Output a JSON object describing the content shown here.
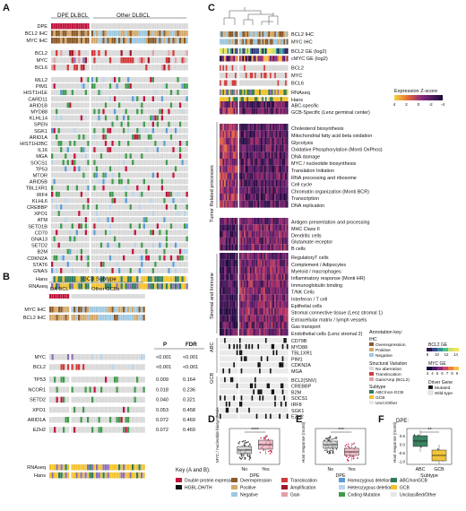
{
  "colors": {
    "dpe": "#c0143c",
    "overexpression": "#8b5a2b",
    "positive": "#d4a86a",
    "negative": "#9ec8e0",
    "translocation": "#d13a3a",
    "amplification": "#a0192a",
    "gain": "#e0a2a8",
    "homo_del": "#5b9bd5",
    "hetero_del": "#b8d4ea",
    "coding": "#3f9a4a",
    "abc": "#2f7d5a",
    "gcb": "#f2c230",
    "uncl": "#e6e6e6",
    "grey": "#d9d9d9",
    "heat_hi": "#f5d53b",
    "heat_mid": "#8a2b80",
    "heat_lo": "#1a0b3a"
  },
  "panel_a": {
    "letter": "A",
    "header_left": "DPE DLBCL",
    "header_right": "Other DLBCL",
    "top_rows": [
      "DPE",
      "BCL2 IHC",
      "MYC IHC"
    ],
    "gene_rows_1": [
      "BCL2",
      "MYC",
      "BCL6"
    ],
    "mutation_rows": [
      "MLL2",
      "PIM1",
      "HIST1H1E",
      "CARD11",
      "ARID1B",
      "MYD88",
      "KLHL14",
      "SPEN",
      "SGK1",
      "ARID1A",
      "HIST1H2BC",
      "IL16",
      "MGA",
      "SOCS1",
      "TP53",
      "MTOR",
      "ARID5B",
      "TBL1XR1",
      "IRF4",
      "KLHL6",
      "CREBBP",
      "XPO1",
      "ATM",
      "SETD1B",
      "CD70",
      "GNA13",
      "SETD2",
      "B2M",
      "CDKN2A",
      "STAT6",
      "GNAS"
    ],
    "bottom_rows": [
      "Hans",
      "RNAseq"
    ]
  },
  "panel_b": {
    "letter": "B",
    "subtype_title": "GCB Subtype",
    "group_left": "DA BCL",
    "group_right": "Other GCBs",
    "ihc_rows": [
      "MYC IHC",
      "BCL2 IHC"
    ],
    "col_p": "P",
    "col_fdr": "FDR",
    "rows": [
      {
        "label": "MYC",
        "p": "<0.001",
        "fdr": "<0.001"
      },
      {
        "label": "BCL2",
        "p": "<0.001",
        "fdr": "<0.001"
      },
      {
        "label": "TP53",
        "p": "0.009",
        "fdr": "0.164"
      },
      {
        "label": "NCOR1",
        "p": "0.018",
        "fdr": "0.236"
      },
      {
        "label": "SETD2",
        "p": "0.040",
        "fdr": "0.321"
      },
      {
        "label": "XPO1",
        "p": "0.053",
        "fdr": "0.458"
      },
      {
        "label": "ARID1A",
        "p": "0.072",
        "fdr": "0.469"
      },
      {
        "label": "EZH2",
        "p": "0.072",
        "fdr": "0.469"
      }
    ],
    "bottom_rows": [
      "RNAseq",
      "Hans"
    ]
  },
  "panel_c": {
    "letter": "C",
    "annot_rows": [
      "BCL2 IHC",
      "MYC IHC",
      "BCL2 GE (log2)",
      "cMYC GE (log2)",
      "BCL2",
      "MYC",
      "BCL6",
      "RNAseq",
      "Hans"
    ],
    "colorbar_title": "Expression Z-score",
    "colorbar_ticks": [
      "4",
      "2",
      "0",
      "-2",
      "-4"
    ],
    "cell_rows": [
      "ABC-specific",
      "GCB-Specific (Lenz germinal center)"
    ],
    "tumor_label": "Tumor Related processes",
    "tumor_rows": [
      "Cholesterol biosynthesis",
      "Mitochondrial fatty acid beta oxidation",
      "Glycolysis",
      "Oxidative Phosphorylation (Monti OxPhos)",
      "DNA damage",
      "MYC / nucleotide biosynthesis",
      "Translation Initiation",
      "RNA processing and ribosome",
      "Cell cycle",
      "Chromatin organization (Monti BCR)",
      "Transcription",
      "DNA replication"
    ],
    "mid_rows": [
      "Antigen presentation and processing",
      "MHC Class II",
      "Dendritic cells",
      "Glutamate receptor",
      "B cells"
    ],
    "stromal_label": "Stromal and Immune",
    "stromal_rows": [
      "RegulatoryT cells",
      "Complement / Adipocytes",
      "Myeloid / macrophages",
      "Inflammatory response (Monti HR)",
      "Immunoglobulin binding",
      "T/NK Cells",
      "Interferon / T cell",
      "Epithelial cells",
      "Stromal connective tissue (Lenz stromal 1)",
      "Extracellular matrix / lymph vessels",
      "Gas transport",
      "Endothelial cells (Lenz stromal 2)"
    ],
    "abc_label": "ABC",
    "abc_rows": [
      "CD79B",
      "MYD88",
      "TBL1XR1",
      "PIM1",
      "CDKN2A",
      "MGA"
    ],
    "gcb_label": "GCB",
    "gcb_rows": [
      "BCL2(SNV)",
      "CREBBP",
      "B2M",
      "SOCS1",
      "IRF8",
      "SGK1",
      "EZH2"
    ],
    "legend": {
      "title": "Annotation key:",
      "ihc": "IHC",
      "ihc_items": [
        "Overexpression",
        "Positive",
        "Negative"
      ],
      "sv": "Structural Variation",
      "sv_items": [
        "No aberration",
        "Translocation",
        "Gain/Amp (BCL2)"
      ],
      "subtype": "Subtype",
      "subtype_items": [
        "ABC/non-GCB",
        "GCB",
        "Uncl./Other"
      ],
      "bcl2ge": "BCL2 GE",
      "bcl2ge_ticks": [
        "8",
        "10",
        "12",
        "14"
      ],
      "mycge": "MYC GE",
      "mycge_ticks": [
        "3",
        "4",
        "5",
        "6",
        "7",
        "8",
        "9"
      ],
      "driver": "Driver Gene",
      "driver_items": [
        "Mutated",
        "Wild-type"
      ]
    }
  },
  "panel_d": {
    "letter": "D",
    "ylabel": "MYC / nucleotide biosynthesis",
    "xlabel": "DPE",
    "categories": [
      "No",
      "Yes"
    ],
    "sig": "****"
  },
  "panel_e": {
    "letter": "E",
    "ylabel": "Host response (monti)",
    "xlabel": "DPE",
    "categories": [
      "No",
      "Yes"
    ],
    "sig": "***"
  },
  "panel_f": {
    "letter": "F",
    "title": "DPE:",
    "ylabel": "Host response (monti)",
    "xlabel": "Subtype",
    "categories": [
      "ABC",
      "GCB"
    ],
    "yticks": [
      "0.5",
      "0.0",
      "-0.5",
      "-1.0"
    ],
    "sig": "**"
  },
  "key": {
    "title": "Key (A and B):",
    "items": [
      {
        "label": "Double protein expressor",
        "color": "#c0143c"
      },
      {
        "label": "Overexpression",
        "color": "#8b5a2b"
      },
      {
        "label": "Translocation",
        "color": "#d13a3a"
      },
      {
        "label": "Homozygous deletion",
        "color": "#5b9bd5"
      },
      {
        "label": "ABC/nonGCB",
        "color": "#2f7d5a"
      },
      {
        "label": "HGBL-DH/TH",
        "color": "#111111"
      },
      {
        "label": "Positive",
        "color": "#d4a86a"
      },
      {
        "label": "Amplification",
        "color": "#a0192a"
      },
      {
        "label": "Heterozygous deletion",
        "color": "#b8d4ea"
      },
      {
        "label": "GCB",
        "color": "#f2c230"
      },
      {
        "label": "Negative",
        "color": "#9ec8e0"
      },
      {
        "label": "Gain",
        "color": "#e0a2a8"
      },
      {
        "label": "Coding Mutation",
        "color": "#3f9a4a"
      },
      {
        "label": "Unclassified/Other",
        "color": "#e6e6e6"
      }
    ]
  }
}
